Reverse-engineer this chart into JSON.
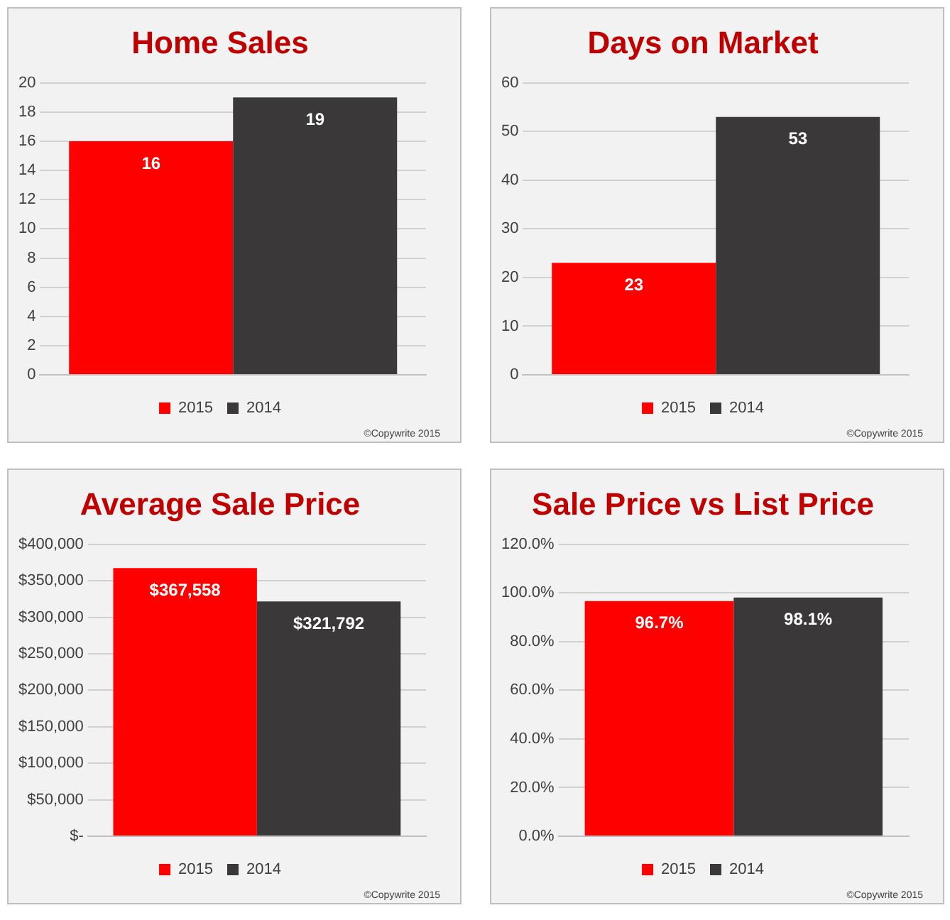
{
  "chart_data": [
    {
      "type": "bar",
      "title": "Home Sales",
      "categories": [
        null
      ],
      "series": [
        {
          "name": "2015",
          "color": "#ff0000",
          "values": [
            16
          ]
        },
        {
          "name": "2014",
          "color": "#3a3838",
          "values": [
            19
          ]
        }
      ],
      "ylim": [
        0,
        20
      ],
      "yticks": [
        0,
        2,
        4,
        6,
        8,
        10,
        12,
        14,
        16,
        18,
        20
      ],
      "grid": "y",
      "legend": "bottom",
      "data_labels": true,
      "annotations": [
        "©Copywrite 2015"
      ]
    },
    {
      "type": "bar",
      "title": "Days on Market",
      "categories": [
        null
      ],
      "series": [
        {
          "name": "2015",
          "color": "#ff0000",
          "values": [
            23
          ]
        },
        {
          "name": "2014",
          "color": "#3a3838",
          "values": [
            53
          ]
        }
      ],
      "ylim": [
        0,
        60
      ],
      "yticks": [
        0,
        10,
        20,
        30,
        40,
        50,
        60
      ],
      "grid": "y",
      "legend": "bottom",
      "data_labels": true,
      "annotations": [
        "©Copywrite 2015"
      ]
    },
    {
      "type": "bar",
      "title": "Average Sale Price",
      "categories": [
        null
      ],
      "series": [
        {
          "name": "2015",
          "color": "#ff0000",
          "values": [
            367558
          ],
          "value_labels": [
            "$367,558"
          ]
        },
        {
          "name": "2014",
          "color": "#3a3838",
          "values": [
            321792
          ],
          "value_labels": [
            "$321,792"
          ]
        }
      ],
      "ylim": [
        0,
        400000
      ],
      "yticks": [
        {
          "value": 0,
          "label": "$-"
        },
        {
          "value": 50000,
          "label": "$50,000"
        },
        {
          "value": 100000,
          "label": "$100,000"
        },
        {
          "value": 150000,
          "label": "$150,000"
        },
        {
          "value": 200000,
          "label": "$200,000"
        },
        {
          "value": 250000,
          "label": "$250,000"
        },
        {
          "value": 300000,
          "label": "$300,000"
        },
        {
          "value": 350000,
          "label": "$350,000"
        },
        {
          "value": 400000,
          "label": "$400,000"
        }
      ],
      "grid": "y",
      "legend": "bottom",
      "annotations": [
        "©Copywrite 2015"
      ]
    },
    {
      "type": "bar",
      "title": "Sale Price vs List Price",
      "categories": [
        null
      ],
      "series": [
        {
          "name": "2015",
          "color": "#ff0000",
          "values": [
            96.7
          ],
          "value_labels": [
            "96.7%"
          ]
        },
        {
          "name": "2014",
          "color": "#3a3838",
          "values": [
            98.1
          ],
          "value_labels": [
            "98.1%"
          ]
        }
      ],
      "ylim": [
        0,
        120
      ],
      "yticks": [
        {
          "value": 0,
          "label": "0.0%"
        },
        {
          "value": 20,
          "label": "20.0%"
        },
        {
          "value": 40,
          "label": "40.0%"
        },
        {
          "value": 60,
          "label": "60.0%"
        },
        {
          "value": 80,
          "label": "80.0%"
        },
        {
          "value": 100,
          "label": "100.0%"
        },
        {
          "value": 120,
          "label": "120.0%"
        }
      ],
      "grid": "y",
      "legend": "bottom",
      "annotations": [
        "©Copywrite 2015"
      ]
    }
  ]
}
